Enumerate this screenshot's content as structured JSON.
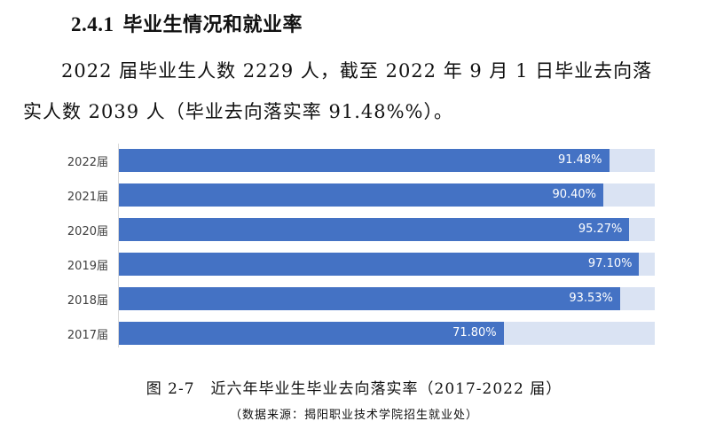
{
  "heading": {
    "number": "2.4.1",
    "title": "毕业生情况和就业率"
  },
  "paragraph": {
    "line1": "2022 届毕业生人数 2229 人，截至 2022 年 9 月 1 日毕业去向落",
    "line2": "实人数 2039 人（毕业去向落实率 91.48%%）。"
  },
  "figure": {
    "caption": "图 2-7　近六年毕业生毕业去向落实率（2017-2022 届）",
    "source": "（数据来源：揭阳职业技术学院招生就业处）"
  },
  "chart_data": {
    "type": "bar",
    "orientation": "horizontal",
    "title": "近六年毕业生毕业去向落实率（2017-2022 届）",
    "categories": [
      "2022届",
      "2021届",
      "2020届",
      "2019届",
      "2018届",
      "2017届"
    ],
    "values": [
      91.48,
      90.4,
      95.27,
      97.1,
      93.53,
      71.8
    ],
    "labels": [
      "91.48%",
      "90.40%",
      "95.27%",
      "97.10%",
      "93.53%",
      "71.80%"
    ],
    "xlabel": "",
    "ylabel": "",
    "xlim": [
      0,
      100
    ],
    "grid": false,
    "legend": null,
    "colors": {
      "bar": "#4472c4",
      "background_bar": "#dae3f3"
    }
  }
}
